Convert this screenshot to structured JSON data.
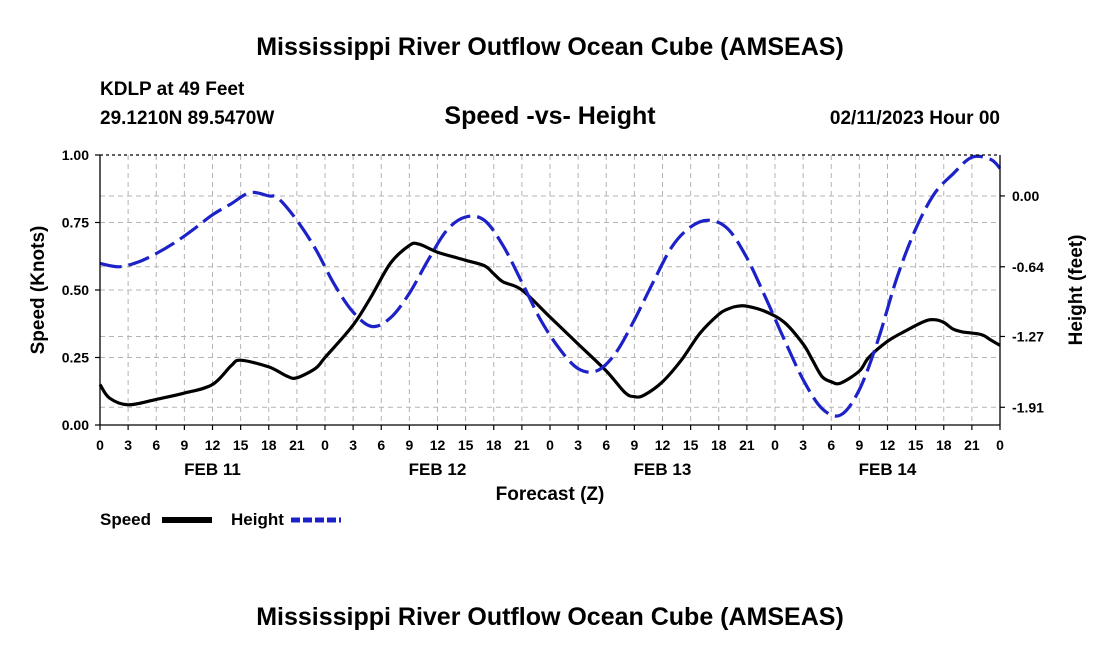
{
  "title": "Mississippi River Outflow Ocean Cube (AMSEAS)",
  "footer_title": "Mississippi River Outflow Ocean Cube (AMSEAS)",
  "station": "KDLP at 49 Feet",
  "coords": "29.1210N  89.5470W",
  "issued": "02/11/2023 Hour 00",
  "chart_data": {
    "type": "line",
    "title": "Speed -vs- Height",
    "xlabel": "Forecast (Z)",
    "ylabel": "Speed (Knots)",
    "y2label": "Height (feet)",
    "xlim": [
      0,
      96
    ],
    "ylim": [
      0,
      1
    ],
    "y2lim": [
      -2.07,
      0.37
    ],
    "yticks": [
      0,
      0.25,
      0.5,
      0.75,
      1.0
    ],
    "yticklabels": [
      "0.00",
      "0.25",
      "0.50",
      "0.75",
      "1.00"
    ],
    "y2ticks": [
      0.0,
      -0.64,
      -1.27,
      -1.91
    ],
    "y2ticklabels": [
      "0.00",
      "-0.64",
      "-1.27",
      "-1.91"
    ],
    "xticklabels": [
      "0",
      "3",
      "6",
      "9",
      "12",
      "15",
      "18",
      "21",
      "0",
      "3",
      "6",
      "9",
      "12",
      "15",
      "18",
      "21",
      "0",
      "3",
      "6",
      "9",
      "12",
      "15",
      "18",
      "21",
      "0",
      "3",
      "6",
      "9",
      "12",
      "15",
      "18",
      "21",
      "0"
    ],
    "date_labels": [
      {
        "label": "FEB 11",
        "hour": 12
      },
      {
        "label": "FEB 12",
        "hour": 36
      },
      {
        "label": "FEB 13",
        "hour": 60
      },
      {
        "label": "FEB 14",
        "hour": 84
      }
    ],
    "grid": true,
    "series": [
      {
        "name": "Speed",
        "axis": "left",
        "color": "#000000",
        "dash": "solid",
        "points": [
          [
            0,
            0.15
          ],
          [
            1,
            0.1
          ],
          [
            3,
            0.075
          ],
          [
            6,
            0.095
          ],
          [
            9,
            0.118
          ],
          [
            12,
            0.15
          ],
          [
            14,
            0.22
          ],
          [
            15,
            0.24
          ],
          [
            18,
            0.215
          ],
          [
            20,
            0.18
          ],
          [
            21,
            0.175
          ],
          [
            23,
            0.21
          ],
          [
            24,
            0.25
          ],
          [
            27,
            0.37
          ],
          [
            29,
            0.48
          ],
          [
            31,
            0.6
          ],
          [
            33,
            0.665
          ],
          [
            34,
            0.67
          ],
          [
            36,
            0.64
          ],
          [
            38,
            0.62
          ],
          [
            39,
            0.61
          ],
          [
            41,
            0.59
          ],
          [
            42,
            0.56
          ],
          [
            43,
            0.53
          ],
          [
            45,
            0.5
          ],
          [
            48,
            0.4
          ],
          [
            51,
            0.3
          ],
          [
            54,
            0.2
          ],
          [
            56,
            0.12
          ],
          [
            57,
            0.105
          ],
          [
            58,
            0.11
          ],
          [
            60,
            0.16
          ],
          [
            62,
            0.24
          ],
          [
            64,
            0.34
          ],
          [
            66,
            0.41
          ],
          [
            67,
            0.43
          ],
          [
            68,
            0.44
          ],
          [
            69,
            0.44
          ],
          [
            71,
            0.42
          ],
          [
            73,
            0.38
          ],
          [
            75,
            0.3
          ],
          [
            76,
            0.24
          ],
          [
            77,
            0.18
          ],
          [
            78,
            0.16
          ],
          [
            79,
            0.155
          ],
          [
            81,
            0.2
          ],
          [
            82,
            0.25
          ],
          [
            84,
            0.31
          ],
          [
            86,
            0.35
          ],
          [
            88,
            0.385
          ],
          [
            89,
            0.39
          ],
          [
            90,
            0.38
          ],
          [
            91,
            0.355
          ],
          [
            92,
            0.345
          ],
          [
            94,
            0.335
          ],
          [
            95,
            0.315
          ],
          [
            96,
            0.295
          ]
        ]
      },
      {
        "name": "Height",
        "axis": "right",
        "color": "#1c22c8",
        "dash": "dashed",
        "points": [
          [
            0,
            -0.61
          ],
          [
            2,
            -0.64
          ],
          [
            4,
            -0.6
          ],
          [
            6,
            -0.52
          ],
          [
            8,
            -0.42
          ],
          [
            10,
            -0.3
          ],
          [
            12,
            -0.17
          ],
          [
            14,
            -0.07
          ],
          [
            16,
            0.03
          ],
          [
            18,
            0.0
          ],
          [
            19,
            -0.02
          ],
          [
            21,
            -0.22
          ],
          [
            23,
            -0.48
          ],
          [
            25,
            -0.8
          ],
          [
            27,
            -1.05
          ],
          [
            29,
            -1.18
          ],
          [
            31,
            -1.1
          ],
          [
            33,
            -0.88
          ],
          [
            35,
            -0.58
          ],
          [
            37,
            -0.31
          ],
          [
            39,
            -0.19
          ],
          [
            41,
            -0.22
          ],
          [
            43,
            -0.45
          ],
          [
            45,
            -0.78
          ],
          [
            47,
            -1.12
          ],
          [
            49,
            -1.38
          ],
          [
            51,
            -1.56
          ],
          [
            53,
            -1.58
          ],
          [
            55,
            -1.42
          ],
          [
            57,
            -1.12
          ],
          [
            59,
            -0.78
          ],
          [
            61,
            -0.46
          ],
          [
            63,
            -0.28
          ],
          [
            65,
            -0.22
          ],
          [
            67,
            -0.3
          ],
          [
            69,
            -0.56
          ],
          [
            71,
            -0.92
          ],
          [
            73,
            -1.3
          ],
          [
            75,
            -1.66
          ],
          [
            77,
            -1.92
          ],
          [
            79,
            -1.98
          ],
          [
            81,
            -1.75
          ],
          [
            83,
            -1.3
          ],
          [
            85,
            -0.74
          ],
          [
            87,
            -0.3
          ],
          [
            89,
            0.02
          ],
          [
            91,
            0.2
          ],
          [
            93,
            0.35
          ],
          [
            95,
            0.33
          ],
          [
            96,
            0.25
          ]
        ]
      }
    ]
  }
}
